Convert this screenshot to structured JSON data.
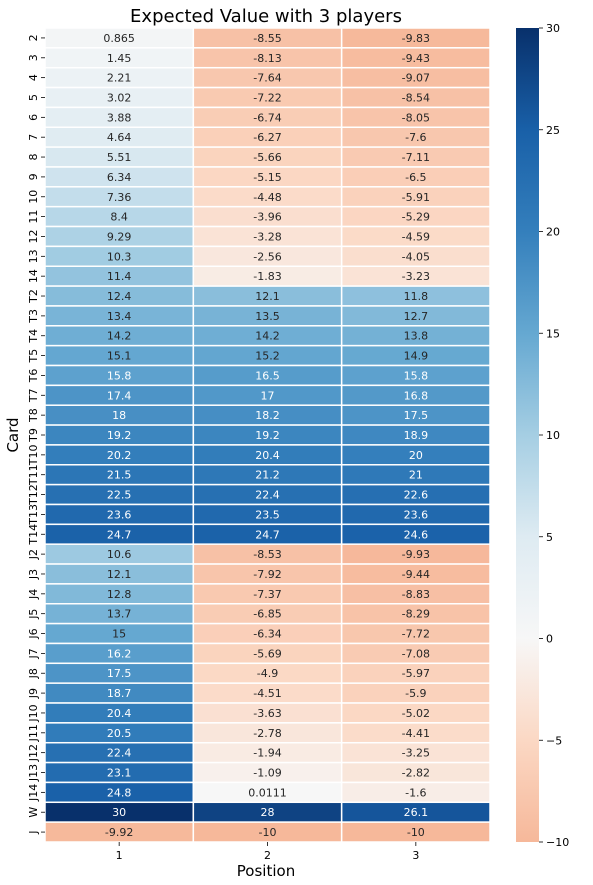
{
  "chart_data": {
    "type": "heatmap",
    "title": "Expected Value with 3 players",
    "xlabel": "Position",
    "ylabel": "Card",
    "x_categories": [
      "1",
      "2",
      "3"
    ],
    "y_categories": [
      "2",
      "3",
      "4",
      "5",
      "6",
      "7",
      "8",
      "9",
      "10",
      "11",
      "12",
      "13",
      "14",
      "T2",
      "T3",
      "T4",
      "T5",
      "T6",
      "T7",
      "T8",
      "T9",
      "T10",
      "T11",
      "T12",
      "T13",
      "T14",
      "J2",
      "J3",
      "J4",
      "J5",
      "J6",
      "J7",
      "J8",
      "J9",
      "J10",
      "J11",
      "J12",
      "J13",
      "J14",
      "W",
      "J"
    ],
    "values": [
      [
        "0.865",
        "-8.55",
        "-9.83"
      ],
      [
        "1.45",
        "-8.13",
        "-9.43"
      ],
      [
        "2.21",
        "-7.64",
        "-9.07"
      ],
      [
        "3.02",
        "-7.22",
        "-8.54"
      ],
      [
        "3.88",
        "-6.74",
        "-8.05"
      ],
      [
        "4.64",
        "-6.27",
        "-7.6"
      ],
      [
        "5.51",
        "-5.66",
        "-7.11"
      ],
      [
        "6.34",
        "-5.15",
        "-6.5"
      ],
      [
        "7.36",
        "-4.48",
        "-5.91"
      ],
      [
        "8.4",
        "-3.96",
        "-5.29"
      ],
      [
        "9.29",
        "-3.28",
        "-4.59"
      ],
      [
        "10.3",
        "-2.56",
        "-4.05"
      ],
      [
        "11.4",
        "-1.83",
        "-3.23"
      ],
      [
        "12.4",
        "12.1",
        "11.8"
      ],
      [
        "13.4",
        "13.5",
        "12.7"
      ],
      [
        "14.2",
        "14.2",
        "13.8"
      ],
      [
        "15.1",
        "15.2",
        "14.9"
      ],
      [
        "15.8",
        "16.5",
        "15.8"
      ],
      [
        "17.4",
        "17",
        "16.8"
      ],
      [
        "18",
        "18.2",
        "17.5"
      ],
      [
        "19.2",
        "19.2",
        "18.9"
      ],
      [
        "20.2",
        "20.4",
        "20"
      ],
      [
        "21.5",
        "21.2",
        "21"
      ],
      [
        "22.5",
        "22.4",
        "22.6"
      ],
      [
        "23.6",
        "23.5",
        "23.6"
      ],
      [
        "24.7",
        "24.7",
        "24.6"
      ],
      [
        "10.6",
        "-8.53",
        "-9.93"
      ],
      [
        "12.1",
        "-7.92",
        "-9.44"
      ],
      [
        "12.8",
        "-7.37",
        "-8.83"
      ],
      [
        "13.7",
        "-6.85",
        "-8.29"
      ],
      [
        "15",
        "-6.34",
        "-7.72"
      ],
      [
        "16.2",
        "-5.69",
        "-7.08"
      ],
      [
        "17.5",
        "-4.9",
        "-5.97"
      ],
      [
        "18.7",
        "-4.51",
        "-5.9"
      ],
      [
        "20.4",
        "-3.63",
        "-5.02"
      ],
      [
        "20.5",
        "-2.78",
        "-4.41"
      ],
      [
        "22.4",
        "-1.94",
        "-3.25"
      ],
      [
        "23.1",
        "-1.09",
        "-2.82"
      ],
      [
        "24.8",
        "0.0111",
        "-1.6"
      ],
      [
        "30",
        "28",
        "26.1"
      ],
      [
        "-9.92",
        "-10",
        "-10"
      ]
    ],
    "colorbar": {
      "min": -10,
      "max": 30,
      "ticks": [
        "-10",
        "-5",
        "0",
        "5",
        "10",
        "15",
        "20",
        "25",
        "30"
      ],
      "colormap": "RdBu (diverging, centered at 0)"
    },
    "annotations": true
  }
}
